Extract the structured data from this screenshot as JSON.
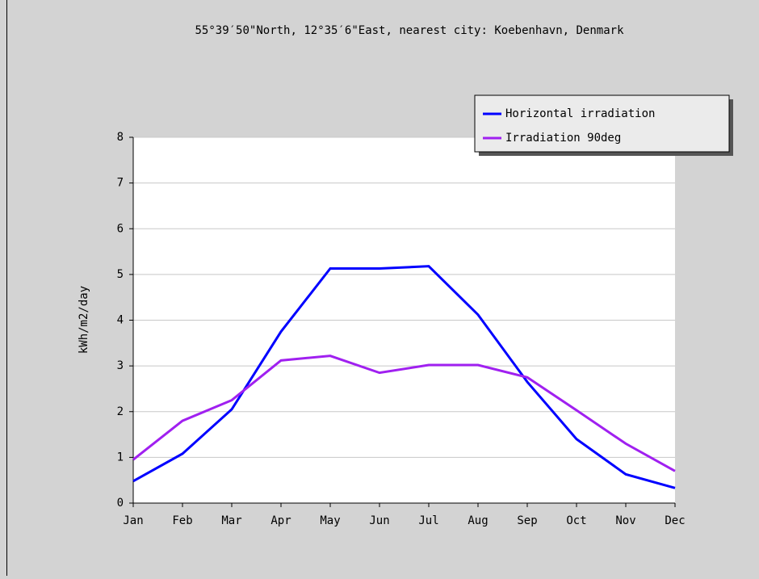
{
  "chart_data": {
    "type": "line",
    "title": "55°39′50\"North, 12°35′6\"East, nearest city: Koebenhavn, Denmark",
    "y_label": "kWh/m2/day",
    "categories": [
      "Jan",
      "Feb",
      "Mar",
      "Apr",
      "May",
      "Jun",
      "Jul",
      "Aug",
      "Sep",
      "Oct",
      "Nov",
      "Dec"
    ],
    "series": [
      {
        "name": "Horizontal irradiation",
        "color": "#0000ff",
        "values": [
          0.48,
          1.08,
          2.05,
          3.75,
          5.13,
          5.13,
          5.18,
          4.12,
          2.65,
          1.4,
          0.63,
          0.33
        ]
      },
      {
        "name": "Irradiation 90deg",
        "color": "#a020f0",
        "values": [
          0.95,
          1.8,
          2.25,
          3.12,
          3.22,
          2.85,
          3.02,
          3.02,
          2.75,
          2.03,
          1.3,
          0.7
        ]
      }
    ],
    "ylim": [
      0,
      8
    ],
    "yticks": [
      0,
      1,
      2,
      3,
      4,
      5,
      6,
      7,
      8
    ],
    "grid": true,
    "legend": "upper right"
  }
}
